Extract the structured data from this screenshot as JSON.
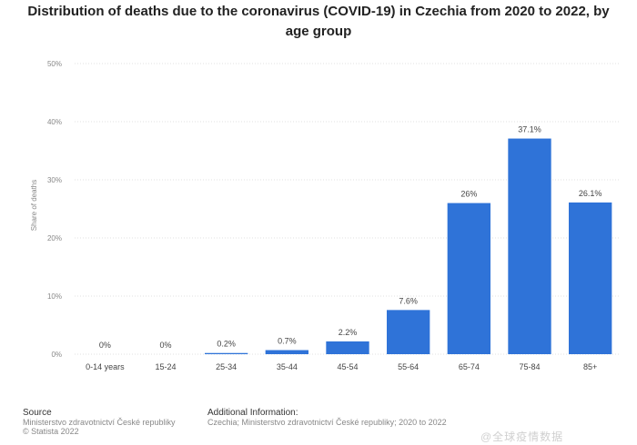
{
  "chart_data": {
    "type": "bar",
    "title": "Distribution of deaths due to the coronavirus (COVID-19) in Czechia from 2020 to 2022, by age group",
    "categories": [
      "0-14 years",
      "15-24",
      "25-34",
      "35-44",
      "45-54",
      "55-64",
      "65-74",
      "75-84",
      "85+"
    ],
    "values": [
      0,
      0,
      0.2,
      0.7,
      2.2,
      7.6,
      26,
      37.1,
      26.1
    ],
    "value_labels": [
      "0%",
      "0%",
      "0.2%",
      "0.7%",
      "2.2%",
      "7.6%",
      "26%",
      "37.1%",
      "26.1%"
    ],
    "xlabel": "",
    "ylabel": "Share of deaths",
    "ylim": [
      0,
      50
    ],
    "yticks": [
      0,
      10,
      20,
      30,
      40,
      50
    ],
    "ytick_labels": [
      "0%",
      "10%",
      "20%",
      "30%",
      "40%",
      "50%"
    ],
    "grid": true,
    "bar_color": "#2f73d8"
  },
  "footer": {
    "source_heading": "Source",
    "source_line1": "Ministerstvo zdravotnictví České republiky",
    "source_line2": "© Statista 2022",
    "info_heading": "Additional Information:",
    "info_line1": "Czechia; Ministerstvo zdravotnictví České republiky; 2020 to 2022"
  },
  "watermark": "@全球疫情数据"
}
